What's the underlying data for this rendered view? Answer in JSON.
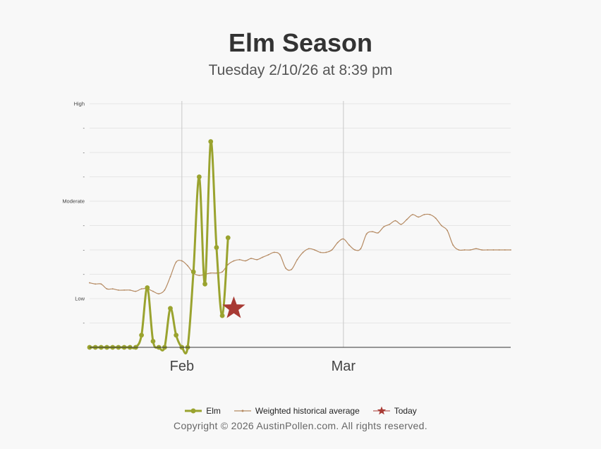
{
  "page": {
    "title": "Elm Season",
    "subtitle": "Tuesday 2/10/26 at 8:39 pm",
    "copyright": "Copyright © 2026 AustinPollen.com.  All rights reserved."
  },
  "colors": {
    "elm": "#9aa32f",
    "average": "#b58a62",
    "today": "#a83a34",
    "grid": "#e6e6e6",
    "axis": "#333333",
    "month_line": "#c8c8c8"
  },
  "chart_data": {
    "type": "line",
    "x_unit": "days since Jan 12 (Jan 12 = 0)",
    "xlim": [
      0,
      73
    ],
    "ylim": [
      0,
      10
    ],
    "grid": true,
    "legend_position": "bottom",
    "y_ticks": [
      {
        "value": 10,
        "label": "High"
      },
      {
        "value": 9,
        "label": "-"
      },
      {
        "value": 8,
        "label": "-"
      },
      {
        "value": 7,
        "label": "-"
      },
      {
        "value": 6,
        "label": "Moderate"
      },
      {
        "value": 5,
        "label": "-"
      },
      {
        "value": 4,
        "label": "-"
      },
      {
        "value": 3,
        "label": "-"
      },
      {
        "value": 2,
        "label": "Low"
      },
      {
        "value": 1,
        "label": "-"
      }
    ],
    "x_ticks": [
      {
        "value": 16,
        "label": "Feb"
      },
      {
        "value": 44,
        "label": "Mar"
      }
    ],
    "series": [
      {
        "name": "Elm",
        "x": [
          0,
          1,
          2,
          3,
          4,
          5,
          6,
          7,
          8,
          9,
          10,
          11,
          12,
          13,
          14,
          15,
          16,
          17,
          18,
          19,
          20,
          21,
          22,
          23,
          24
        ],
        "y": [
          0,
          0,
          0,
          0,
          0,
          0,
          0,
          0,
          0,
          0.5,
          2.45,
          0.25,
          0,
          0,
          1.6,
          0.5,
          0,
          0,
          3.1,
          7,
          2.6,
          8.45,
          4.1,
          1.3,
          4.5
        ]
      },
      {
        "name": "Weighted historical average",
        "x": [
          0,
          1,
          2,
          3,
          4,
          5,
          6,
          7,
          8,
          9,
          10,
          11,
          12,
          13,
          14,
          15,
          16,
          17,
          18,
          19,
          20,
          21,
          22,
          23,
          24,
          25,
          26,
          27,
          28,
          29,
          30,
          31,
          32,
          33,
          34,
          35,
          36,
          37,
          38,
          39,
          40,
          41,
          42,
          43,
          44,
          45,
          46,
          47,
          48,
          49,
          50,
          51,
          52,
          53,
          54,
          55,
          56,
          57,
          58,
          59,
          60,
          61,
          62,
          63,
          64,
          65,
          66,
          67,
          68,
          69,
          70,
          71,
          72,
          73
        ],
        "y": [
          2.65,
          2.6,
          2.6,
          2.4,
          2.4,
          2.35,
          2.35,
          2.35,
          2.3,
          2.4,
          2.4,
          2.3,
          2.2,
          2.35,
          2.9,
          3.5,
          3.55,
          3.35,
          3.05,
          2.95,
          3.0,
          3.05,
          3.05,
          3.1,
          3.4,
          3.55,
          3.6,
          3.55,
          3.65,
          3.6,
          3.7,
          3.8,
          3.9,
          3.8,
          3.25,
          3.2,
          3.6,
          3.9,
          4.05,
          4.0,
          3.9,
          3.9,
          4.0,
          4.3,
          4.45,
          4.2,
          4.0,
          4.05,
          4.65,
          4.75,
          4.7,
          4.95,
          5.05,
          5.2,
          5.05,
          5.25,
          5.45,
          5.35,
          5.45,
          5.45,
          5.3,
          5.0,
          4.8,
          4.2,
          4.0,
          4.0,
          4.0,
          4.05,
          4.0,
          4.0,
          4.0,
          4.0,
          4.0,
          4.0
        ]
      },
      {
        "name": "Today",
        "x": [
          25
        ],
        "y": [
          1.6
        ]
      }
    ]
  }
}
